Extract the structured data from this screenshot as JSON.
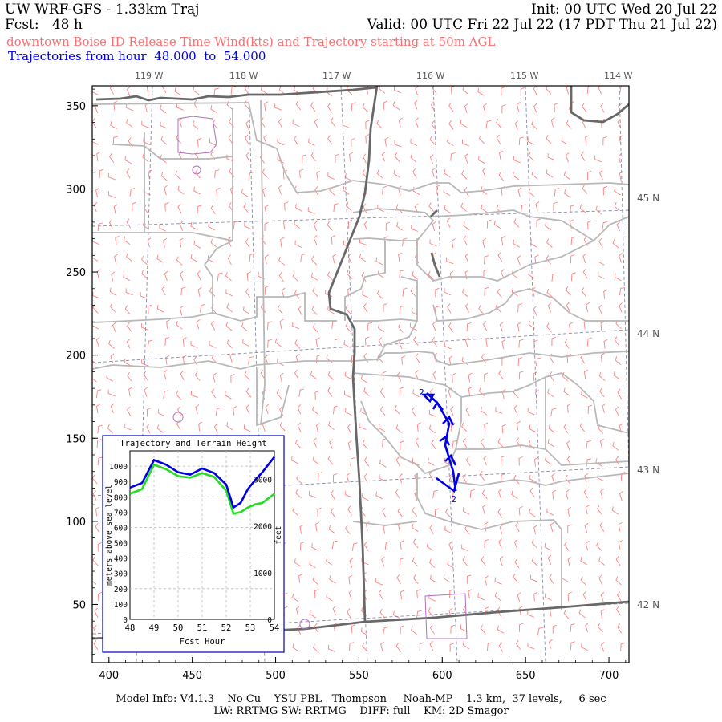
{
  "header": {
    "model": "UW WRF-GFS - 1.33km Traj",
    "init": "Init: 00 UTC Wed 20 Jul 22",
    "fcst_label": "Fcst:",
    "fcst_value": "48 h",
    "valid": "Valid: 00 UTC Fri 22 Jul 22 (17 PDT Thu 21 Jul 22)",
    "subtitle": "downtown Boise ID Release Time Wind(kts) and Trajectory starting at 50m AGL",
    "traj_prefix": "Trajectories from hour",
    "traj_from": "48.000",
    "traj_to_word": "to",
    "traj_to": "54.000"
  },
  "map": {
    "x_ticks": [
      "400",
      "450",
      "500",
      "550",
      "600",
      "650",
      "700"
    ],
    "y_ticks": [
      "50",
      "100",
      "150",
      "200",
      "250",
      "300",
      "350"
    ],
    "lon_labels": [
      "119 W",
      "118 W",
      "117 W",
      "116 W",
      "115 W",
      "114 W"
    ],
    "lat_labels": [
      "45 N",
      "44 N",
      "43 N",
      "42 N"
    ],
    "trajectory_start_label": "2",
    "trajectory_end_label": "2",
    "colors": {
      "wind_barbs": "#ff8080",
      "trajectory": "#0000e0",
      "state_border": "#606060",
      "county_border": "#b8b8b8",
      "grid": "#8080a0"
    }
  },
  "inset": {
    "title": "Trajectory and Terrain Height",
    "ylabel_left": "meters above sea level",
    "ylabel_right": "feet",
    "xlabel": "Fcst Hour",
    "x_ticks": [
      "48",
      "49",
      "50",
      "51",
      "52",
      "53",
      "54"
    ],
    "y_ticks_m": [
      "0",
      "100",
      "200",
      "300",
      "400",
      "500",
      "600",
      "700",
      "800",
      "900",
      "1000"
    ],
    "y_ticks_ft": [
      "0",
      "1000",
      "2000",
      "3000"
    ]
  },
  "chart_data": {
    "type": "line",
    "title": "Trajectory and Terrain Height",
    "xlabel": "Fcst Hour",
    "ylabel": "meters above sea level",
    "xlim": [
      48,
      54
    ],
    "ylim": [
      0,
      1100
    ],
    "x": [
      48.0,
      48.5,
      49.0,
      49.5,
      50.0,
      50.5,
      51.0,
      51.5,
      52.0,
      52.3,
      52.6,
      52.9,
      53.2,
      53.5,
      54.0
    ],
    "series": [
      {
        "name": "trajectory",
        "color": "#0000e0",
        "values": [
          860,
          890,
          1040,
          1010,
          960,
          945,
          985,
          955,
          880,
          730,
          760,
          850,
          910,
          960,
          1060
        ]
      },
      {
        "name": "terrain",
        "color": "#22dd22",
        "values": [
          820,
          850,
          1010,
          980,
          935,
          925,
          955,
          930,
          840,
          690,
          700,
          730,
          750,
          760,
          820
        ]
      }
    ]
  },
  "footer": {
    "line1": "Model Info: V4.1.3    No Cu    YSU PBL   Thompson     Noah-MP    1.3 km,  37 levels,     6 sec",
    "line2": "LW: RRTMG SW: RRTMG    DIFF: full    KM: 2D Smagor"
  }
}
